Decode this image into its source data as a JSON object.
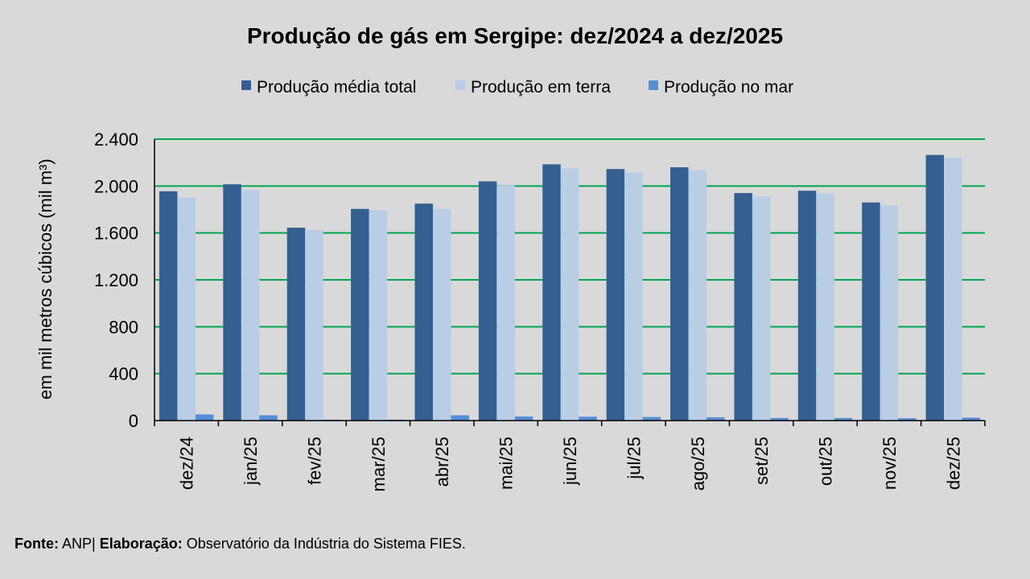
{
  "chart_data": {
    "type": "bar",
    "title": "Produção de gás em Sergipe: dez/2024 a dez/2025",
    "xlabel": "",
    "ylabel": "em mil metros cúbicos (mil m³)",
    "ylim": [
      0,
      2400
    ],
    "yticks": [
      0,
      400,
      800,
      1200,
      1600,
      2000,
      2400
    ],
    "ytick_labels": [
      "0",
      "400",
      "800",
      "1.200",
      "1.600",
      "2.000",
      "2.400"
    ],
    "grid": true,
    "legend_position": "top",
    "categories": [
      "dez/24",
      "jan/25",
      "fev/25",
      "mar/25",
      "abr/25",
      "mai/25",
      "jun/25",
      "jul/25",
      "ago/25",
      "set/25",
      "out/25",
      "nov/25",
      "dez/25"
    ],
    "series": [
      {
        "name": "Produção média total",
        "color": "#355f91",
        "values": [
          1955,
          2015,
          1645,
          1805,
          1850,
          2040,
          2185,
          2145,
          2160,
          1940,
          1960,
          1860,
          2265
        ]
      },
      {
        "name": "Produção em terra",
        "color": "#b9cde5",
        "values": [
          1900,
          1965,
          1625,
          1795,
          1805,
          2005,
          2150,
          2115,
          2135,
          1910,
          1935,
          1835,
          2240
        ]
      },
      {
        "name": "Produção no mar",
        "color": "#558ed5",
        "values": [
          52,
          45,
          8,
          8,
          45,
          35,
          33,
          30,
          28,
          22,
          22,
          20,
          25
        ]
      }
    ],
    "colors": {
      "gridline": "#00a651",
      "axis": "#000000",
      "background": "#d9d9d9"
    }
  },
  "footer": {
    "source_label": "Fonte:",
    "source_value": "ANP|",
    "credit_label": "Elaboração:",
    "credit_value": "Observatório da Indústria do Sistema FIES."
  }
}
